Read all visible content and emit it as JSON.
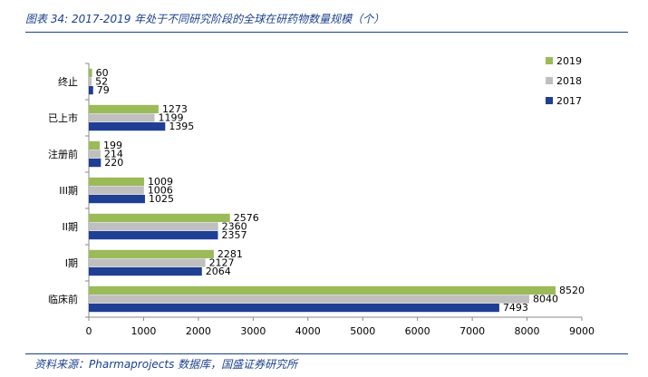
{
  "figure": {
    "title": "图表 34: 2017-2019 年处于不同研究阶段的全球在研药物数量规模（个）",
    "source": "资料来源：Pharmaprojects 数据库，国盛证券研究所"
  },
  "chart_data": {
    "type": "bar",
    "orientation": "horizontal",
    "categories": [
      "终止",
      "已上市",
      "注册前",
      "III期",
      "II期",
      "I期",
      "临床前"
    ],
    "series": [
      {
        "name": "2019",
        "color": "#9bbb59",
        "values": [
          60,
          1273,
          199,
          1009,
          2576,
          2281,
          8520
        ]
      },
      {
        "name": "2018",
        "color": "#bfbfbf",
        "values": [
          52,
          1199,
          214,
          1006,
          2360,
          2127,
          8040
        ]
      },
      {
        "name": "2017",
        "color": "#1f3f95",
        "values": [
          79,
          1395,
          220,
          1025,
          2357,
          2064,
          7493
        ]
      }
    ],
    "xlim": [
      0,
      9000
    ],
    "xticks": [
      0,
      1000,
      2000,
      3000,
      4000,
      5000,
      6000,
      7000,
      8000,
      9000
    ],
    "legend_position": "right",
    "grid": false,
    "data_labels": true
  }
}
